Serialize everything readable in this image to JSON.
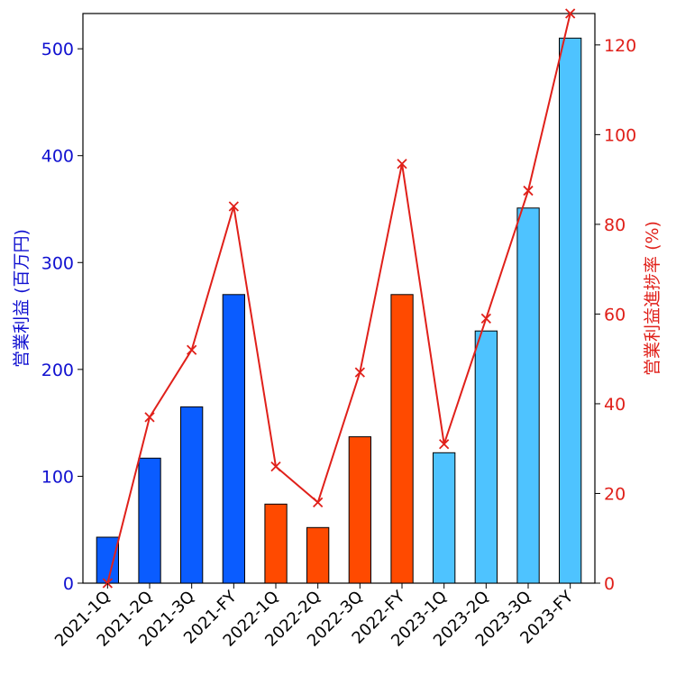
{
  "chart_data": {
    "type": "bar+line",
    "categories": [
      "2021-1Q",
      "2021-2Q",
      "2021-3Q",
      "2021-FY",
      "2022-1Q",
      "2022-2Q",
      "2022-3Q",
      "2022-FY",
      "2023-1Q",
      "2023-2Q",
      "2023-3Q",
      "2023-FY"
    ],
    "bar_series": {
      "axis": "left",
      "values": [
        43,
        117,
        165,
        270,
        74,
        52,
        137,
        270,
        122,
        236,
        351,
        510
      ],
      "colors": [
        "#0a5cff",
        "#0a5cff",
        "#0a5cff",
        "#0a5cff",
        "#ff4a00",
        "#ff4a00",
        "#ff4a00",
        "#ff4a00",
        "#4ec3ff",
        "#4ec3ff",
        "#4ec3ff",
        "#4ec3ff"
      ]
    },
    "line_series": {
      "axis": "right",
      "values": [
        0,
        37,
        52,
        84,
        26,
        18,
        47,
        93.5,
        31,
        59,
        87.5,
        127
      ],
      "color": "#e0201a",
      "marker": "x"
    },
    "ylabel_left": "営業利益 (百万円)",
    "ylabel_right": "営業利益進捗率 (%)",
    "ylim_left": [
      0,
      533
    ],
    "ylim_right": [
      0,
      127
    ],
    "yticks_left": [
      0,
      100,
      200,
      300,
      400,
      500
    ],
    "yticks_right": [
      0,
      20,
      40,
      60,
      80,
      100,
      120
    ],
    "grid": false,
    "left_axis_color": "#1010d0",
    "right_axis_color": "#e0201a"
  }
}
